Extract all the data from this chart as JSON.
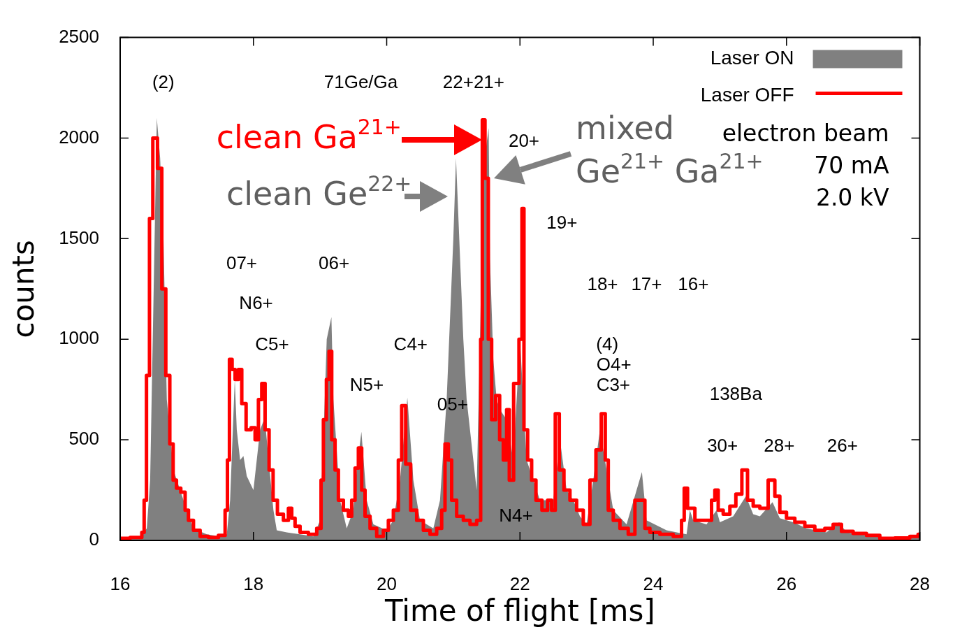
{
  "chart_data": {
    "type": "area",
    "xlabel": "Time of flight [ms]",
    "ylabel": "counts",
    "xlim": [
      16,
      28
    ],
    "ylim": [
      0,
      2500
    ],
    "xticks": [
      16,
      18,
      20,
      22,
      24,
      26,
      28
    ],
    "yticks": [
      0,
      500,
      1000,
      1500,
      2000,
      2500
    ],
    "grid": false,
    "legend": "top right",
    "series": [
      {
        "name": "Laser ON",
        "color": "#808080",
        "x": [
          16.0,
          16.3,
          16.4,
          16.45,
          16.5,
          16.55,
          16.6,
          16.65,
          16.7,
          16.8,
          16.9,
          17.0,
          17.1,
          17.3,
          17.5,
          17.6,
          17.65,
          17.72,
          17.75,
          17.8,
          17.85,
          17.9,
          18.0,
          18.1,
          18.17,
          18.2,
          18.3,
          18.35,
          18.5,
          18.7,
          18.9,
          19.0,
          19.05,
          19.1,
          19.17,
          19.2,
          19.3,
          19.4,
          19.5,
          19.55,
          19.62,
          19.7,
          19.8,
          20.0,
          20.1,
          20.2,
          20.31,
          20.4,
          20.5,
          20.7,
          20.8,
          20.9,
          21.0,
          21.04,
          21.15,
          21.2,
          21.3,
          21.35,
          21.4,
          21.45,
          21.53,
          21.55,
          21.6,
          21.65,
          21.7,
          21.8,
          21.9,
          22.0,
          22.1,
          22.2,
          22.3,
          22.5,
          22.6,
          22.7,
          22.8,
          22.9,
          23.0,
          23.1,
          23.2,
          23.3,
          23.4,
          23.6,
          23.75,
          23.83,
          23.9,
          24.2,
          24.5,
          24.55,
          24.6,
          24.8,
          24.95,
          25.0,
          25.2,
          25.39,
          25.5,
          25.6,
          25.79,
          25.9,
          26.1,
          26.3,
          26.6,
          26.79,
          26.9,
          27.2,
          27.6,
          28.0
        ],
        "values": [
          10,
          15,
          60,
          300,
          1200,
          2100,
          1900,
          1500,
          700,
          350,
          250,
          150,
          60,
          30,
          20,
          30,
          200,
          800,
          550,
          400,
          420,
          320,
          250,
          550,
          610,
          500,
          150,
          50,
          40,
          30,
          20,
          100,
          500,
          1000,
          1110,
          700,
          200,
          60,
          150,
          350,
          540,
          200,
          80,
          50,
          100,
          300,
          710,
          300,
          100,
          60,
          200,
          700,
          1500,
          1900,
          1000,
          700,
          400,
          250,
          1000,
          1850,
          2050,
          1400,
          900,
          700,
          650,
          600,
          400,
          1000,
          400,
          300,
          200,
          200,
          500,
          250,
          200,
          120,
          80,
          300,
          550,
          350,
          150,
          80,
          250,
          340,
          100,
          50,
          30,
          150,
          100,
          80,
          150,
          90,
          120,
          220,
          130,
          120,
          190,
          110,
          90,
          60,
          40,
          90,
          40,
          25,
          10,
          15
        ]
      },
      {
        "name": "Laser OFF",
        "type": "step",
        "color": "#ff0000",
        "x": [
          16.0,
          16.3,
          16.35,
          16.37,
          16.42,
          16.46,
          16.52,
          16.6,
          16.65,
          16.72,
          16.77,
          16.82,
          16.87,
          16.95,
          17.0,
          17.05,
          17.15,
          17.25,
          17.4,
          17.55,
          17.6,
          17.62,
          17.66,
          17.7,
          17.75,
          17.8,
          17.85,
          17.93,
          18.0,
          18.05,
          18.1,
          18.15,
          18.2,
          18.27,
          18.32,
          18.4,
          18.5,
          18.55,
          18.6,
          18.65,
          18.75,
          18.9,
          19.0,
          19.03,
          19.07,
          19.12,
          19.15,
          19.2,
          19.25,
          19.3,
          19.4,
          19.45,
          19.5,
          19.55,
          19.6,
          19.65,
          19.7,
          19.8,
          19.9,
          20.0,
          20.05,
          20.15,
          20.2,
          20.25,
          20.32,
          20.4,
          20.5,
          20.6,
          20.7,
          20.8,
          20.85,
          20.9,
          20.95,
          21.0,
          21.1,
          21.2,
          21.3,
          21.4,
          21.42,
          21.45,
          21.5,
          21.55,
          21.6,
          21.67,
          21.72,
          21.78,
          21.82,
          21.86,
          21.95,
          22.02,
          22.04,
          22.08,
          22.15,
          22.2,
          22.28,
          22.38,
          22.45,
          22.5,
          22.56,
          22.62,
          22.7,
          22.8,
          22.9,
          23.0,
          23.1,
          23.18,
          23.26,
          23.3,
          23.35,
          23.45,
          23.55,
          23.7,
          23.75,
          23.85,
          23.9,
          24.0,
          24.2,
          24.4,
          24.45,
          24.48,
          24.55,
          24.7,
          24.85,
          24.9,
          24.95,
          25.0,
          25.1,
          25.2,
          25.28,
          25.38,
          25.45,
          25.55,
          25.65,
          25.8,
          25.85,
          25.95,
          26.05,
          26.2,
          26.35,
          26.5,
          26.65,
          26.75,
          26.9,
          27.1,
          27.3,
          27.5,
          27.75,
          27.95,
          28.0
        ],
        "values": [
          10,
          15,
          40,
          200,
          820,
          1600,
          2000,
          1850,
          1250,
          820,
          480,
          300,
          260,
          240,
          150,
          100,
          50,
          20,
          15,
          25,
          150,
          400,
          900,
          850,
          800,
          850,
          680,
          550,
          560,
          500,
          700,
          780,
          550,
          350,
          200,
          130,
          100,
          160,
          110,
          70,
          40,
          30,
          60,
          300,
          600,
          800,
          940,
          500,
          350,
          200,
          150,
          120,
          200,
          360,
          460,
          250,
          120,
          60,
          20,
          50,
          100,
          150,
          400,
          670,
          380,
          150,
          100,
          50,
          30,
          60,
          150,
          480,
          400,
          200,
          120,
          100,
          80,
          100,
          1000,
          2090,
          1800,
          1000,
          600,
          720,
          500,
          400,
          650,
          300,
          780,
          1000,
          1650,
          550,
          400,
          300,
          200,
          150,
          200,
          150,
          630,
          350,
          250,
          200,
          150,
          80,
          300,
          450,
          630,
          400,
          150,
          100,
          60,
          30,
          200,
          200,
          60,
          40,
          30,
          20,
          100,
          260,
          160,
          100,
          100,
          200,
          250,
          150,
          130,
          170,
          230,
          350,
          200,
          170,
          160,
          300,
          220,
          140,
          110,
          90,
          70,
          50,
          60,
          80,
          45,
          35,
          25,
          10,
          12,
          20,
          30
        ]
      }
    ],
    "annotations": [
      "clean Ga$^{21+}$",
      "clean Ge$^{22+}$",
      "mixed\nGe$^{21+}$ Ga$^{21+}$",
      "(2)",
      "71Ge/Ga",
      "22+21+",
      "20+",
      "19+",
      "07+",
      "06+",
      "N6+",
      "C5+",
      "C4+",
      "N5+",
      "05+",
      "N4+",
      "18+",
      "17+",
      "16+",
      "(4)",
      "O4+",
      "C3+",
      "138Ba",
      "30+",
      "28+",
      "26+",
      "electron beam",
      "70 mA",
      "2.0 kV"
    ]
  }
}
